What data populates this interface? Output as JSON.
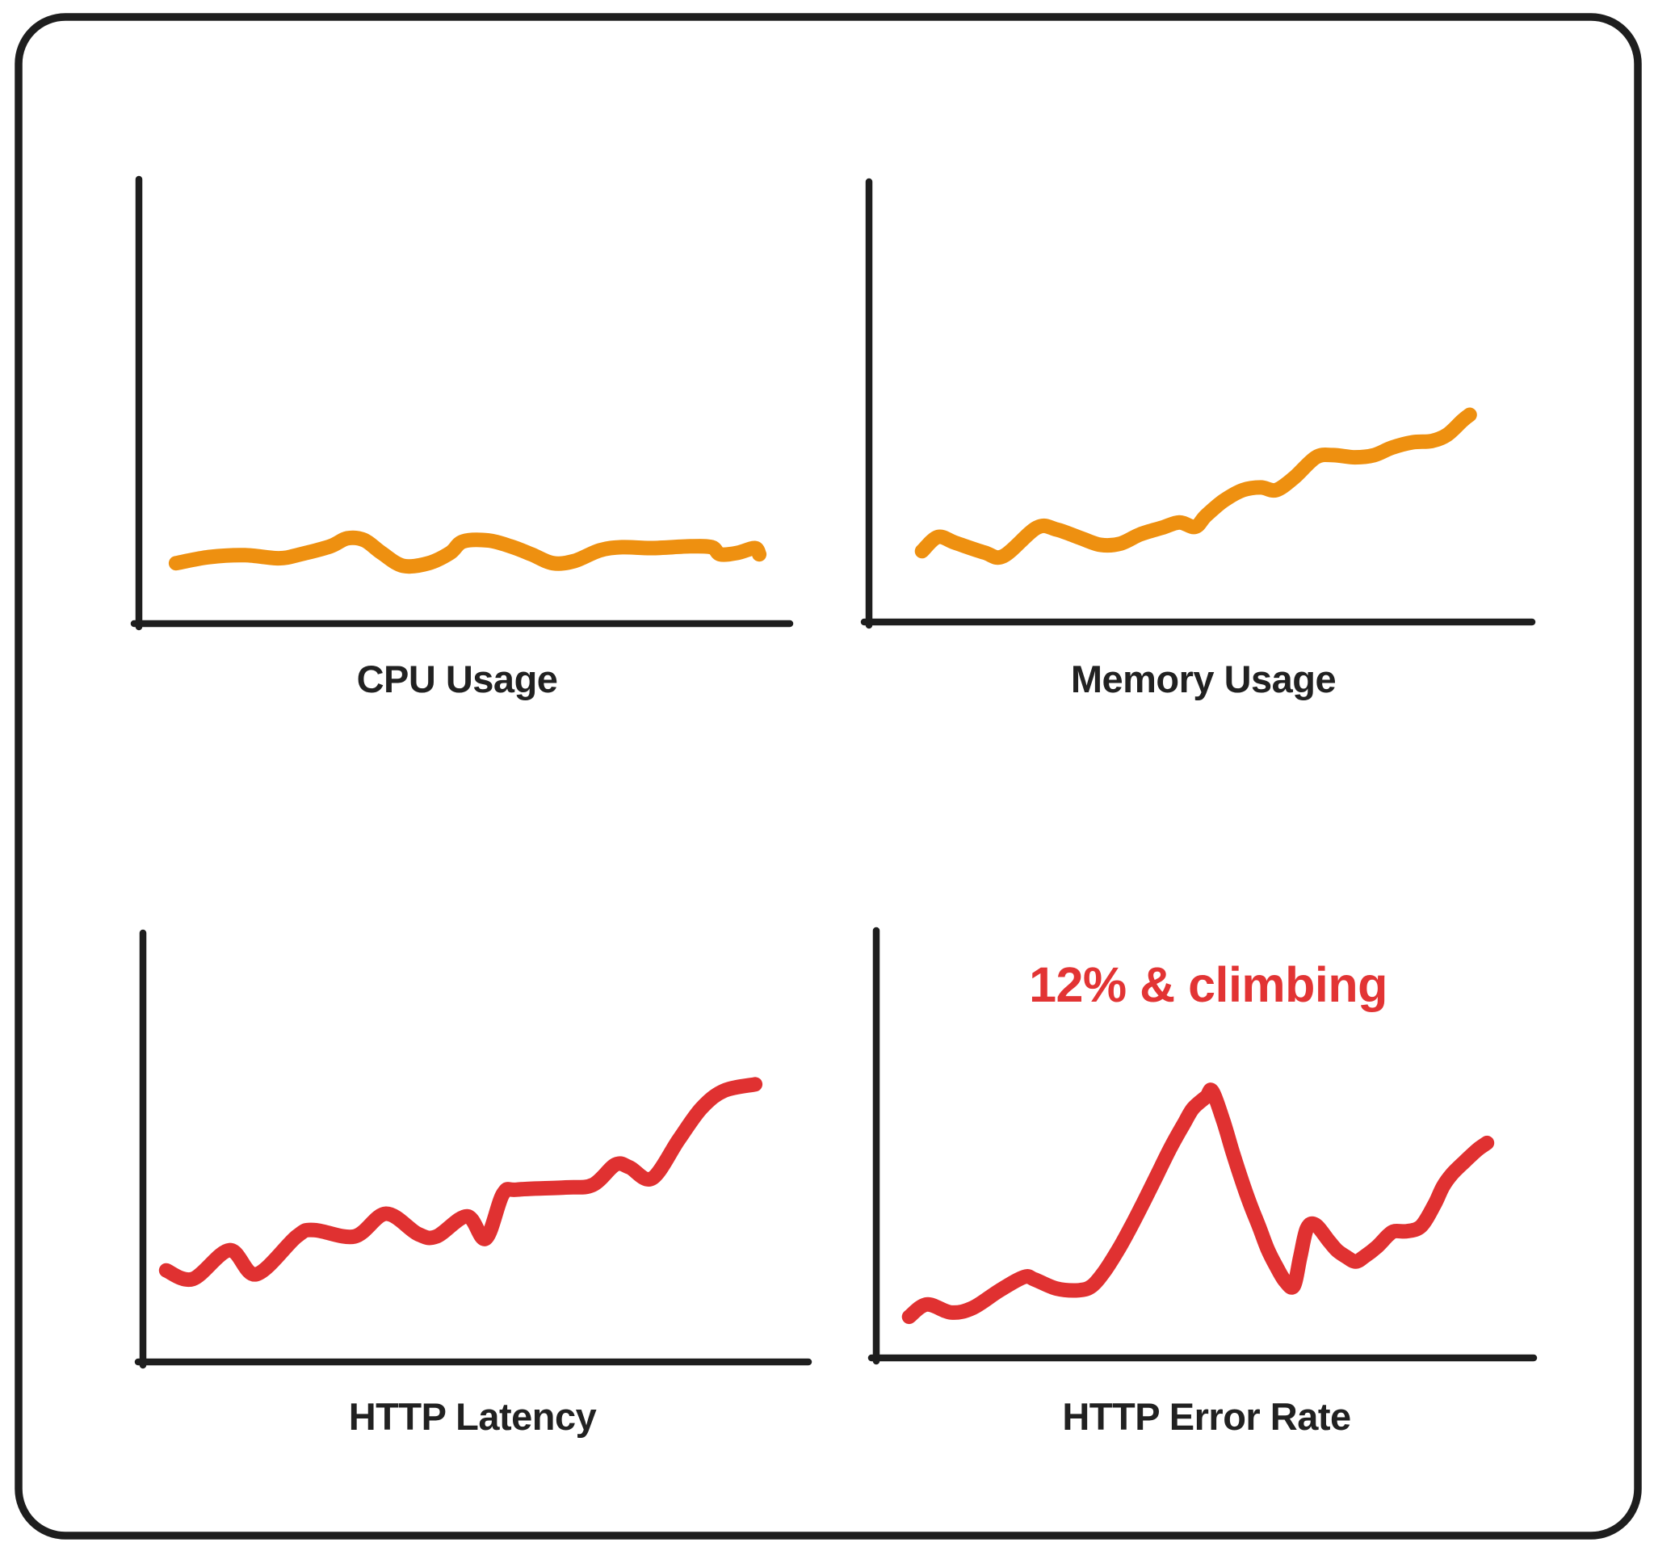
{
  "page": {
    "background": "#ffffff"
  },
  "card": {
    "border_color": "#1e1e1e",
    "fill": "#ffffff"
  },
  "colors": {
    "ink": "#1e1e1e",
    "label": "#212121",
    "orange": "#ee9010",
    "red": "#e03131",
    "annotation_red": "#e23434"
  },
  "chart_data": [
    {
      "id": "cpu_usage",
      "type": "line",
      "title": "CPU Usage",
      "line_color": "#ee9010",
      "legend": "none",
      "grid": "off",
      "units": "relative % (axes unlabeled): x = position along time axis 0-100, y = level above baseline 0-100",
      "xlim": [
        0,
        100
      ],
      "ylim": [
        0,
        100
      ],
      "trend_summary": "flat, small steady wiggles around level ~15",
      "points": [
        [
          5.7,
          13.6
        ],
        [
          10.9,
          15.0
        ],
        [
          16.3,
          15.4
        ],
        [
          21.5,
          14.7
        ],
        [
          24.8,
          15.6
        ],
        [
          29.4,
          17.4
        ],
        [
          32.0,
          19.2
        ],
        [
          34.6,
          18.8
        ],
        [
          37.3,
          15.9
        ],
        [
          40.6,
          13.0
        ],
        [
          44.5,
          13.6
        ],
        [
          47.8,
          15.9
        ],
        [
          49.8,
          18.5
        ],
        [
          53.7,
          18.7
        ],
        [
          57.1,
          17.4
        ],
        [
          60.3,
          15.6
        ],
        [
          63.6,
          13.6
        ],
        [
          66.9,
          14.1
        ],
        [
          70.8,
          16.5
        ],
        [
          74.2,
          17.2
        ],
        [
          78.8,
          17.0
        ],
        [
          84.7,
          17.4
        ],
        [
          88.0,
          17.2
        ],
        [
          89.3,
          15.6
        ],
        [
          91.9,
          15.9
        ],
        [
          94.6,
          17.0
        ],
        [
          95.3,
          15.6
        ]
      ]
    },
    {
      "id": "memory_usage",
      "type": "line",
      "title": "Memory Usage",
      "line_color": "#ee9010",
      "legend": "none",
      "grid": "off",
      "units": "relative % (axes unlabeled): x = position along time axis 0-100, y = level above baseline 0-100",
      "xlim": [
        0,
        100
      ],
      "ylim": [
        0,
        100
      ],
      "trend_summary": "steady stair-step climb from ~16 to ~47",
      "points": [
        [
          8.0,
          16.0
        ],
        [
          10.4,
          19.2
        ],
        [
          13.0,
          17.9
        ],
        [
          17.4,
          15.7
        ],
        [
          20.3,
          14.9
        ],
        [
          25.3,
          21.3
        ],
        [
          28.3,
          20.9
        ],
        [
          32.0,
          18.9
        ],
        [
          35.0,
          17.4
        ],
        [
          37.9,
          17.7
        ],
        [
          40.9,
          19.8
        ],
        [
          44.2,
          21.3
        ],
        [
          46.8,
          22.5
        ],
        [
          49.2,
          21.5
        ],
        [
          50.8,
          24.0
        ],
        [
          53.5,
          27.4
        ],
        [
          56.4,
          29.8
        ],
        [
          59.1,
          30.4
        ],
        [
          61.4,
          29.8
        ],
        [
          64.1,
          32.6
        ],
        [
          67.4,
          37.2
        ],
        [
          70.0,
          37.7
        ],
        [
          73.3,
          37.2
        ],
        [
          76.2,
          37.7
        ],
        [
          78.9,
          39.4
        ],
        [
          82.0,
          40.6
        ],
        [
          84.9,
          40.9
        ],
        [
          87.2,
          42.3
        ],
        [
          89.5,
          45.5
        ],
        [
          90.6,
          46.8
        ]
      ]
    },
    {
      "id": "http_latency",
      "type": "line",
      "title": "HTTP Latency",
      "line_color": "#e03131",
      "legend": "none",
      "grid": "off",
      "units": "relative % (axes unlabeled): x = position along time axis 0-100, y = level above baseline 0-100",
      "xlim": [
        0,
        100
      ],
      "ylim": [
        0,
        100
      ],
      "trend_summary": "wobbly rise from ~21 with step jumps, steep climb at end to ~65",
      "points": [
        [
          3.5,
          21.3
        ],
        [
          7.5,
          19.3
        ],
        [
          13.0,
          26.0
        ],
        [
          17.0,
          20.4
        ],
        [
          23.1,
          29.2
        ],
        [
          25.7,
          30.7
        ],
        [
          31.8,
          29.2
        ],
        [
          36.5,
          34.5
        ],
        [
          41.3,
          29.8
        ],
        [
          44.1,
          29.2
        ],
        [
          48.7,
          33.9
        ],
        [
          51.5,
          28.7
        ],
        [
          54.1,
          39.1
        ],
        [
          56.2,
          40.1
        ],
        [
          63.5,
          40.6
        ],
        [
          67.6,
          41.2
        ],
        [
          71.0,
          45.9
        ],
        [
          73.1,
          45.3
        ],
        [
          76.5,
          42.7
        ],
        [
          80.5,
          51.7
        ],
        [
          83.9,
          59.0
        ],
        [
          87.3,
          63.1
        ],
        [
          92.0,
          64.6
        ]
      ]
    },
    {
      "id": "http_error_rate",
      "type": "line",
      "title": "HTTP Error Rate",
      "line_color": "#e03131",
      "annotation": "12% & climbing",
      "annotation_color": "#e23434",
      "legend": "none",
      "grid": "off",
      "units": "relative % (axes unlabeled): x = position along time axis 0-100, y = level above baseline 0-100",
      "xlim": [
        0,
        100
      ],
      "ylim": [
        0,
        100
      ],
      "trend_summary": "rises to sharp peak ~62, crashes to ~17, rebounds and climbs again to ~50",
      "points": [
        [
          5.0,
          9.6
        ],
        [
          7.7,
          12.5
        ],
        [
          11.4,
          10.6
        ],
        [
          14.7,
          11.7
        ],
        [
          18.8,
          15.8
        ],
        [
          22.5,
          18.9
        ],
        [
          24.1,
          18.3
        ],
        [
          27.4,
          16.2
        ],
        [
          30.8,
          15.8
        ],
        [
          32.8,
          16.8
        ],
        [
          34.8,
          20.4
        ],
        [
          36.9,
          25.5
        ],
        [
          38.8,
          30.8
        ],
        [
          40.8,
          36.8
        ],
        [
          42.8,
          43.0
        ],
        [
          44.8,
          49.2
        ],
        [
          46.8,
          54.7
        ],
        [
          48.2,
          58.3
        ],
        [
          50.2,
          61.0
        ],
        [
          51.1,
          62.3
        ],
        [
          52.8,
          55.3
        ],
        [
          54.2,
          48.1
        ],
        [
          55.5,
          41.9
        ],
        [
          56.9,
          35.8
        ],
        [
          58.2,
          30.8
        ],
        [
          59.5,
          25.5
        ],
        [
          60.8,
          21.5
        ],
        [
          62.2,
          17.9
        ],
        [
          63.5,
          16.8
        ],
        [
          64.5,
          23.6
        ],
        [
          65.5,
          30.2
        ],
        [
          66.8,
          31.1
        ],
        [
          68.9,
          27.2
        ],
        [
          70.1,
          25.1
        ],
        [
          71.5,
          23.6
        ],
        [
          72.9,
          22.5
        ],
        [
          74.2,
          23.6
        ],
        [
          76.2,
          26.0
        ],
        [
          77.9,
          28.7
        ],
        [
          78.9,
          29.6
        ],
        [
          80.8,
          29.6
        ],
        [
          82.9,
          30.8
        ],
        [
          84.9,
          35.8
        ],
        [
          86.2,
          40.0
        ],
        [
          87.6,
          43.0
        ],
        [
          89.6,
          46.0
        ],
        [
          91.5,
          48.7
        ],
        [
          92.9,
          50.2
        ]
      ]
    }
  ]
}
